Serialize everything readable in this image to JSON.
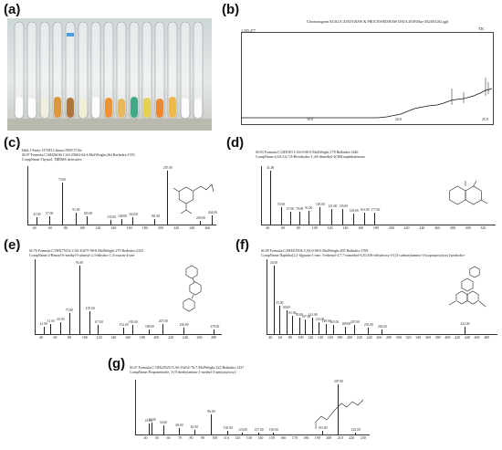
{
  "labels": {
    "a": "(a)",
    "b": "(b)",
    "c": "(c)",
    "d": "(d)",
    "e": "(e)",
    "f": "(f)",
    "g": "(g)"
  },
  "tubes": {
    "liquids": [
      "#ffffff",
      "#ffffff",
      "#f2f0dc",
      "#d9902c",
      "#a86a2a",
      "#f3eed2",
      "#ffffff",
      "#f28a1c",
      "#e8b44c",
      "#2fa37a",
      "#e6cc45",
      "#f07d1d",
      "#f0b23a",
      "#ffffff",
      "#ffffff"
    ],
    "caps": [
      "#4a9ee0"
    ]
  },
  "chromatogram": {
    "title": "Chromatogram KGS2 E:\\DATA\\RAW & PROCESSED\\RAW DATA 2018\\May-2024\\KGS2.qgd",
    "tic": "TIC",
    "ymax": "1,505,477",
    "xticks": [
      "10.0",
      "20.0",
      "25.0"
    ]
  },
  "spectra": {
    "c": {
      "header": [
        "Hit#:1  Entry:137583  Library:NIST17.lib",
        "SI:97  Formula:C16H26OSi  CAS:55663-64-6  MolWeight:264  RetIndex:1553",
        "CompName:Thymol, TBDMS derivative"
      ],
      "xticks": [
        "40",
        "60",
        "80",
        "100",
        "120",
        "140",
        "160",
        "180",
        "200",
        "220",
        "240",
        "260"
      ],
      "xrange": [
        30,
        270
      ],
      "peaks": [
        {
          "x": 41,
          "h": 0.12,
          "l": "41.00"
        },
        {
          "x": 57,
          "h": 0.14,
          "l": "57.00"
        },
        {
          "x": 73,
          "h": 0.72,
          "l": "73.00"
        },
        {
          "x": 91,
          "h": 0.2,
          "l": "91.00"
        },
        {
          "x": 105,
          "h": 0.14,
          "l": "105.00"
        },
        {
          "x": 135,
          "h": 0.08,
          "l": "135.00"
        },
        {
          "x": 149,
          "h": 0.1,
          "l": "149.00"
        },
        {
          "x": 163,
          "h": 0.12,
          "l": "163.00"
        },
        {
          "x": 191,
          "h": 0.1,
          "l": "191.00"
        },
        {
          "x": 207,
          "h": 0.92,
          "l": "207.00"
        },
        {
          "x": 249,
          "h": 0.06,
          "l": "249.00"
        },
        {
          "x": 264,
          "h": 0.16,
          "l": "264.00"
        }
      ]
    },
    "d": {
      "header": [
        "SI:83  Formula:C12H18O  CAS:0-00-0  MolWeight:178  RetIndex:1446",
        "CompName:4,4A,5,6,7,8-Hexahydro-1,4A-dimethyl-2(3H)-naphthalenone"
      ],
      "xticks": [
        "40",
        "60",
        "80",
        "100",
        "120",
        "140",
        "160",
        "180",
        "200",
        "220",
        "240",
        "260",
        "280",
        "300",
        "320"
      ],
      "xrange": [
        30,
        335
      ],
      "peaks": [
        {
          "x": 41,
          "h": 0.92,
          "l": "41.00"
        },
        {
          "x": 55,
          "h": 0.3,
          "l": "55.00"
        },
        {
          "x": 67,
          "h": 0.22,
          "l": "67.00"
        },
        {
          "x": 79,
          "h": 0.22,
          "l": "79.00"
        },
        {
          "x": 91,
          "h": 0.24,
          "l": "91.00"
        },
        {
          "x": 105,
          "h": 0.3,
          "l": "105.00"
        },
        {
          "x": 121,
          "h": 0.26,
          "l": "121.00"
        },
        {
          "x": 135,
          "h": 0.26,
          "l": "135.00"
        },
        {
          "x": 149,
          "h": 0.18,
          "l": "149.00"
        },
        {
          "x": 163,
          "h": 0.2,
          "l": "163.00"
        },
        {
          "x": 177,
          "h": 0.2,
          "l": "177.00"
        }
      ]
    },
    "e": {
      "header": [
        "SI:76  Formula:C19H17NO2  CAS:10275-90-8  MolWeight:279  RetIndex:2325",
        "CompName:2-Benzyl-6-methyl-5-phenyl-2,3-dihydro-1,3-oxazin-4-one"
      ],
      "xticks": [
        "40",
        "60",
        "80",
        "100",
        "120",
        "140",
        "160",
        "180",
        "200",
        "220",
        "240",
        "260",
        "280"
      ],
      "xrange": [
        30,
        290
      ],
      "peaks": [
        {
          "x": 41,
          "h": 0.1,
          "l": "41.00"
        },
        {
          "x": 51,
          "h": 0.14,
          "l": "51.00"
        },
        {
          "x": 65,
          "h": 0.16,
          "l": "65.00"
        },
        {
          "x": 77,
          "h": 0.28,
          "l": "77.00"
        },
        {
          "x": 91,
          "h": 0.92,
          "l": "91.00"
        },
        {
          "x": 105,
          "h": 0.3,
          "l": "105.00"
        },
        {
          "x": 117,
          "h": 0.12,
          "l": "117.00"
        },
        {
          "x": 152,
          "h": 0.08,
          "l": "152.00"
        },
        {
          "x": 165,
          "h": 0.12,
          "l": "165.00"
        },
        {
          "x": 188,
          "h": 0.06,
          "l": "188.00"
        },
        {
          "x": 207,
          "h": 0.14,
          "l": "207.00"
        },
        {
          "x": 236,
          "h": 0.08,
          "l": "236.00"
        },
        {
          "x": 279,
          "h": 0.06,
          "l": "279.00"
        }
      ]
    },
    "f": {
      "header": [
        "SI:49  Formula:C26H31NO6  CAS:0-00-0  MolWeight:495  RetIndex:3769",
        "CompName:Naphtho[2,1-b]pyran-1-one, 3-ethenyl-3,7,7-trimethyl-6,10,10b-trihydroxy-5-[(3-carbonylamino-3-isopropoxy)oxy]-perhydro-"
      ],
      "xticks": [
        "40",
        "60",
        "80",
        "100",
        "120",
        "140",
        "160",
        "180",
        "200",
        "220",
        "240",
        "260",
        "280",
        "300",
        "320",
        "340",
        "360",
        "380",
        "400",
        "420",
        "440",
        "460",
        "480"
      ],
      "xrange": [
        30,
        500
      ],
      "peaks": [
        {
          "x": 43,
          "h": 0.92,
          "l": "43.00"
        },
        {
          "x": 55,
          "h": 0.38,
          "l": "55.00"
        },
        {
          "x": 69,
          "h": 0.32,
          "l": "69.00"
        },
        {
          "x": 81,
          "h": 0.24,
          "l": "81.00"
        },
        {
          "x": 95,
          "h": 0.22,
          "l": "95.00"
        },
        {
          "x": 107,
          "h": 0.2,
          "l": "107.00"
        },
        {
          "x": 121,
          "h": 0.22,
          "l": "121.00"
        },
        {
          "x": 135,
          "h": 0.16,
          "l": "135.00"
        },
        {
          "x": 149,
          "h": 0.14,
          "l": "149.00"
        },
        {
          "x": 165,
          "h": 0.12,
          "l": "165.00"
        },
        {
          "x": 189,
          "h": 0.1,
          "l": "189.00"
        },
        {
          "x": 207,
          "h": 0.12,
          "l": "207.00"
        },
        {
          "x": 235,
          "h": 0.08,
          "l": "235.00"
        },
        {
          "x": 263,
          "h": 0.06,
          "l": "263.00"
        },
        {
          "x": 432,
          "h": 0.1,
          "l": "432.00"
        }
      ]
    },
    "g": {
      "header": [
        "SI:47  Formula:C13H22N2O  CAS:16454-76-7  MolWeight:222  RetIndex:1437",
        "CompName:Propanenitrile, 3-(5-diethylamino-1-methyl-3-pentynyloxy)-"
      ],
      "xticks": [
        "40",
        "50",
        "60",
        "70",
        "80",
        "90",
        "100",
        "110",
        "120",
        "130",
        "140",
        "150",
        "160",
        "170",
        "180",
        "190",
        "200",
        "210",
        "220",
        "230"
      ],
      "xrange": [
        30,
        235
      ],
      "peaks": [
        {
          "x": 41,
          "h": 0.2,
          "l": "41.00"
        },
        {
          "x": 44,
          "h": 0.22,
          "l": "44.00"
        },
        {
          "x": 54,
          "h": 0.16,
          "l": "54.00"
        },
        {
          "x": 68,
          "h": 0.12,
          "l": "68.00"
        },
        {
          "x": 81,
          "h": 0.08,
          "l": "81.00"
        },
        {
          "x": 96,
          "h": 0.36,
          "l": "96.00"
        },
        {
          "x": 110,
          "h": 0.06,
          "l": "110.00"
        },
        {
          "x": 123,
          "h": 0.04,
          "l": "123.00"
        },
        {
          "x": 137,
          "h": 0.04,
          "l": "137.00"
        },
        {
          "x": 150,
          "h": 0.04,
          "l": "150.00"
        },
        {
          "x": 193,
          "h": 0.06,
          "l": "193.00"
        },
        {
          "x": 207,
          "h": 0.92,
          "l": "207.00"
        },
        {
          "x": 222,
          "h": 0.04,
          "l": "222.00"
        }
      ]
    }
  }
}
